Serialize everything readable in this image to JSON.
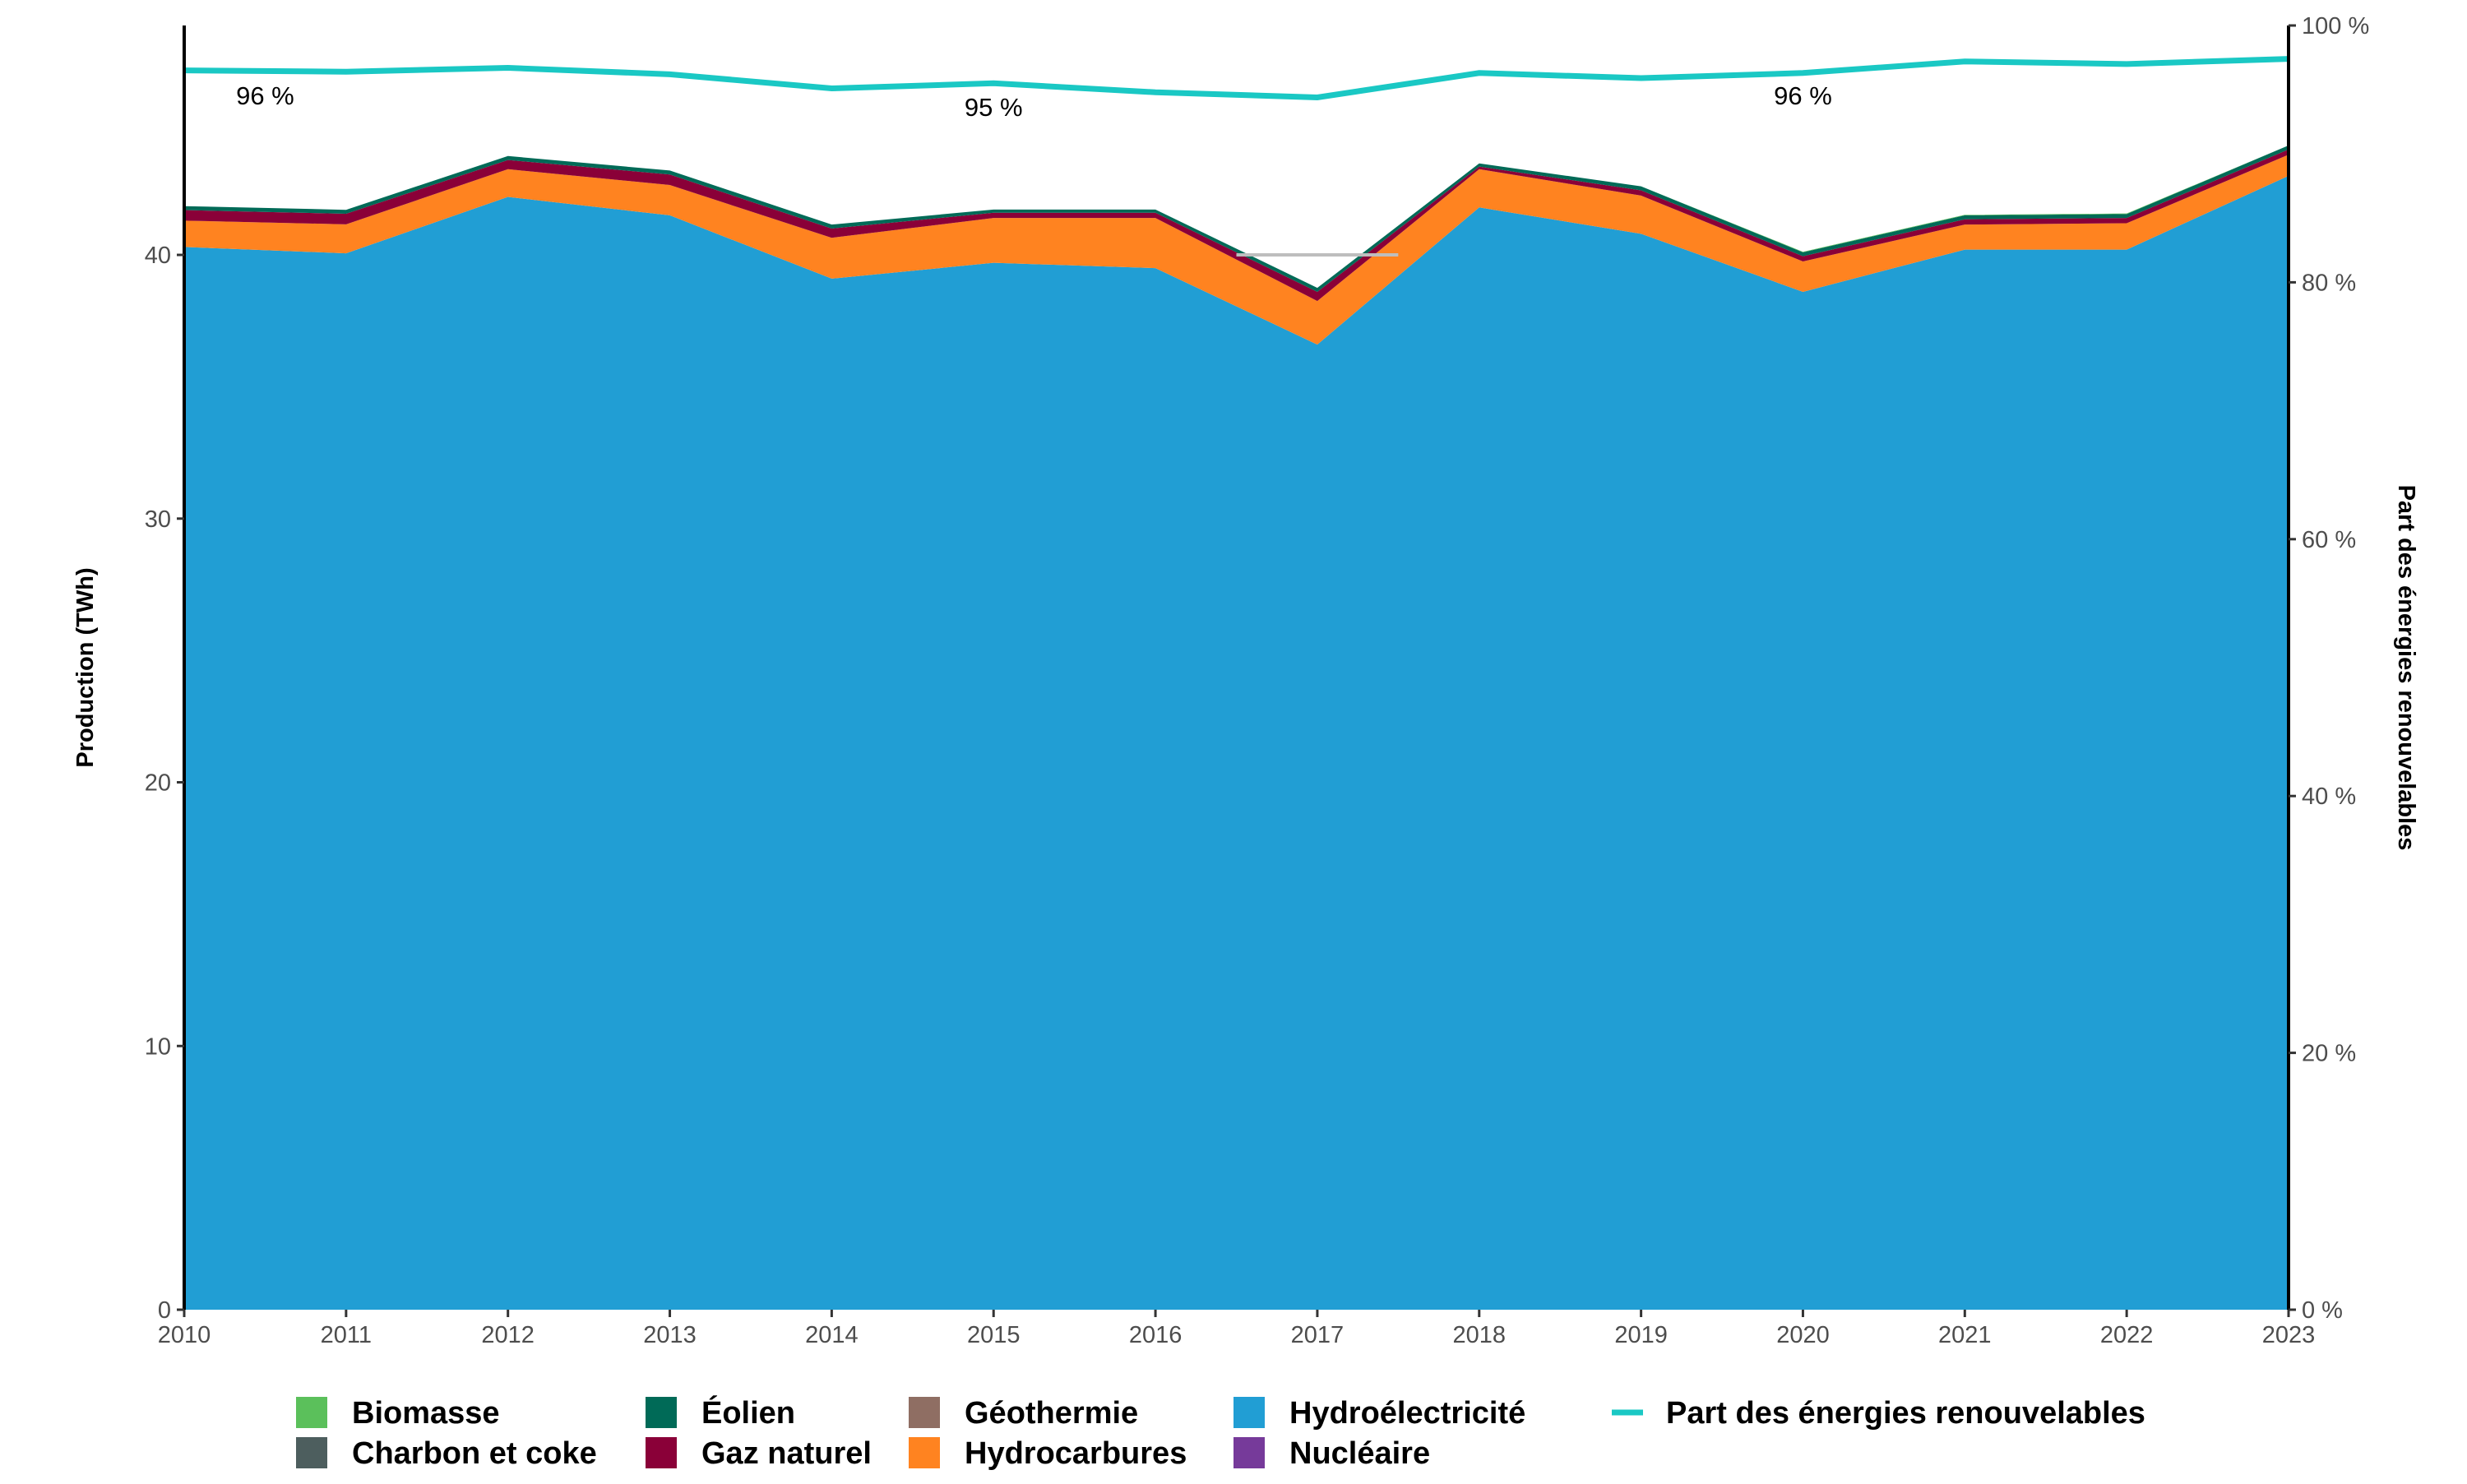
{
  "chart_data": {
    "type": "area",
    "x": [
      2010,
      2011,
      2012,
      2013,
      2014,
      2015,
      2016,
      2017,
      2018,
      2019,
      2020,
      2021,
      2022,
      2023
    ],
    "ylabel": "Production (TWh)",
    "y2label": "Part des énergies renouvelables",
    "ylim": [
      0,
      48.7
    ],
    "y2lim": [
      0,
      100
    ],
    "yticks": [
      0,
      10,
      20,
      30,
      40
    ],
    "y2ticks": [
      "0 %",
      "20 %",
      "40 %",
      "60 %",
      "80 %",
      "100 %"
    ],
    "grid": false,
    "legend_position": "bottom",
    "series": [
      {
        "name": "Hydroélectricité",
        "color": "#219ED4",
        "values": [
          40.3,
          40.06,
          42.2,
          41.5,
          39.1,
          39.7,
          39.5,
          36.6,
          41.8,
          40.8,
          38.6,
          40.2,
          40.2,
          43.0
        ]
      },
      {
        "name": "Hydrocarbures",
        "color": "#FF8320",
        "values": [
          1.0,
          1.1,
          1.05,
          1.15,
          1.55,
          1.7,
          1.9,
          1.65,
          1.45,
          1.45,
          1.15,
          0.95,
          1.0,
          0.8
        ]
      },
      {
        "name": "Nucléaire",
        "color": "#763A9A",
        "values": [
          0,
          0,
          0,
          0,
          0,
          0,
          0,
          0,
          0,
          0,
          0,
          0,
          0,
          0
        ]
      },
      {
        "name": "Géothermie",
        "color": "#8F6E63",
        "values": [
          0,
          0,
          0,
          0,
          0,
          0,
          0,
          0,
          0,
          0,
          0,
          0,
          0,
          0
        ]
      },
      {
        "name": "Gaz naturel",
        "color": "#8A0038",
        "values": [
          0.4,
          0.4,
          0.35,
          0.4,
          0.35,
          0.2,
          0.2,
          0.35,
          0.1,
          0.2,
          0.2,
          0.2,
          0.2,
          0.2
        ]
      },
      {
        "name": "Charbon et coke",
        "color": "#4D5E5E",
        "values": [
          0,
          0,
          0,
          0,
          0,
          0,
          0,
          0,
          0,
          0,
          0,
          0,
          0,
          0
        ]
      },
      {
        "name": "Éolien",
        "color": "#006A57",
        "values": [
          0.15,
          0.15,
          0.15,
          0.15,
          0.15,
          0.12,
          0.12,
          0.15,
          0.12,
          0.15,
          0.15,
          0.15,
          0.15,
          0.15
        ]
      },
      {
        "name": "Biomasse",
        "color": "#5BC05B",
        "values": [
          0,
          0,
          0,
          0,
          0,
          0,
          0,
          0,
          0,
          0,
          0.02,
          0.02,
          0.02,
          0
        ]
      }
    ],
    "line_series": {
      "name": "Part des énergies renouvelables",
      "color": "#1AC8C4",
      "axis": "right",
      "values": [
        96.5,
        96.4,
        96.7,
        96.2,
        95.1,
        95.5,
        94.8,
        94.4,
        96.3,
        95.9,
        96.3,
        97.2,
        97.0,
        97.4
      ]
    },
    "reference_segment": {
      "color": "#BEBEBE",
      "x": [
        2016.5,
        2017.5
      ],
      "y": 40
    },
    "annotations": [
      {
        "text": "96 %",
        "x": 2010.5,
        "y2": 94.5
      },
      {
        "text": "95 %",
        "x": 2015,
        "y2": 93.6
      },
      {
        "text": "96 %",
        "x": 2020,
        "y2": 94.5
      }
    ],
    "legend_order": [
      "Biomasse",
      "Charbon et coke",
      "Éolien",
      "Gaz naturel",
      "Géothermie",
      "Hydrocarbures",
      "Hydroélectricité",
      "Nucléaire",
      "Part des énergies renouvelables"
    ]
  }
}
